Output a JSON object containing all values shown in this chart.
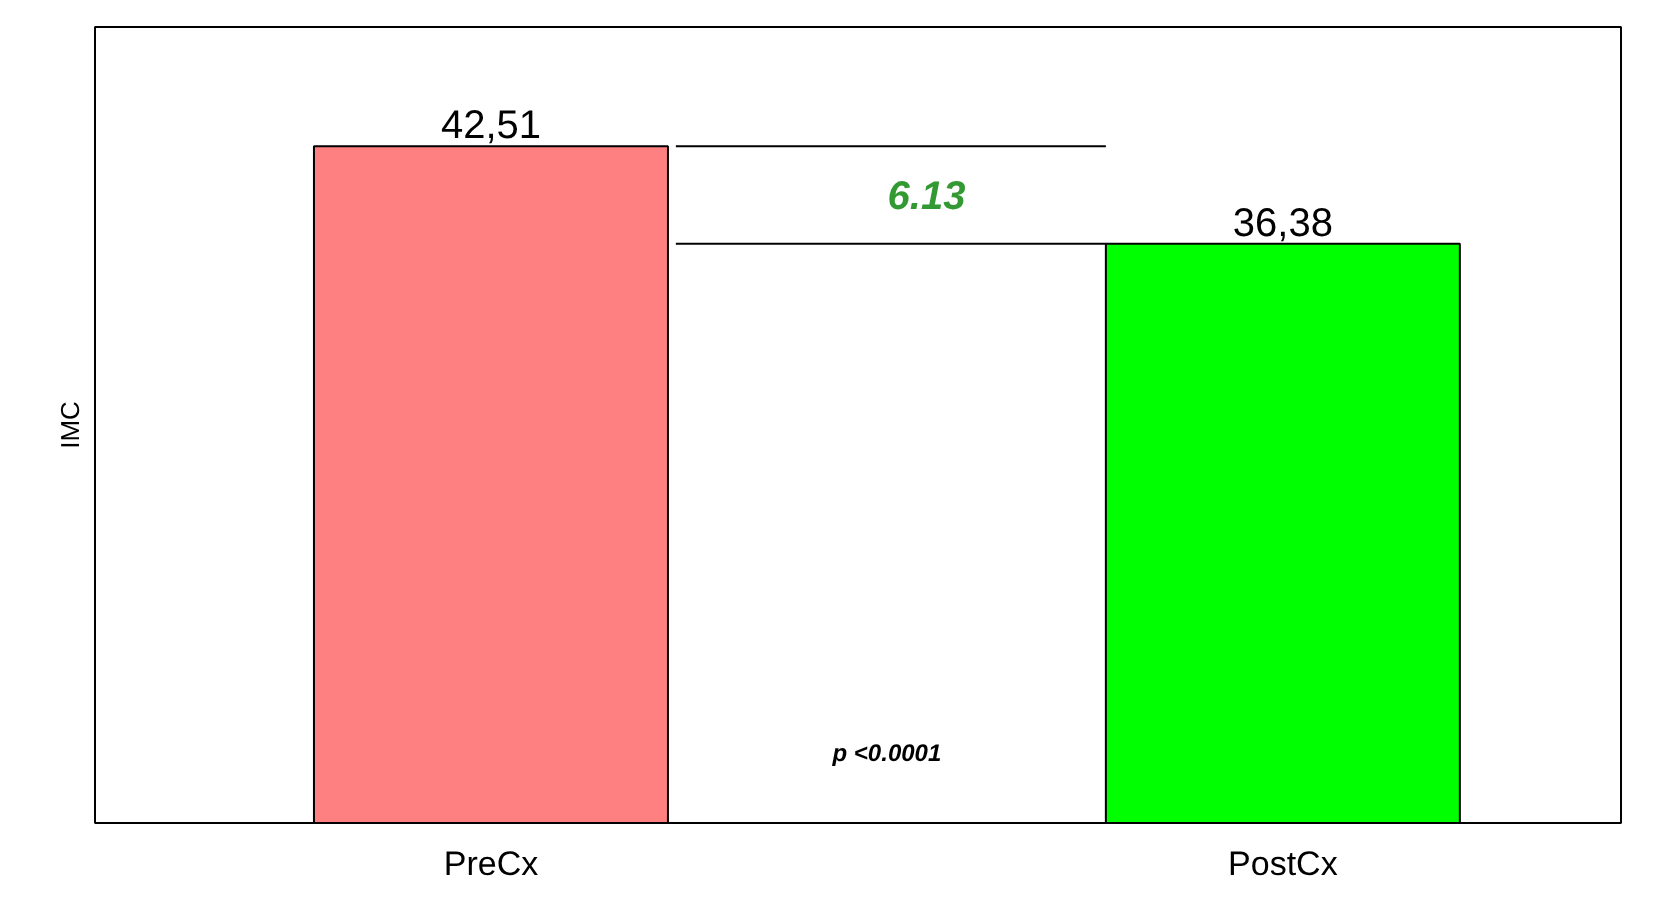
{
  "chart_data": {
    "type": "bar",
    "ylabel": "IMC",
    "categories": [
      "PreCx",
      "PostCx"
    ],
    "values": [
      42.51,
      36.38
    ],
    "colors": [
      "#ff8080",
      "#00ff00"
    ],
    "value_labels": [
      "42,51",
      "36,38"
    ],
    "ylim": [
      0,
      50
    ],
    "grid": false,
    "ref_lines": [
      {
        "axis": "y",
        "value": 42.51
      },
      {
        "axis": "y",
        "value": 36.38
      }
    ],
    "annotations": [
      "6.13",
      "p <0.0001"
    ]
  }
}
